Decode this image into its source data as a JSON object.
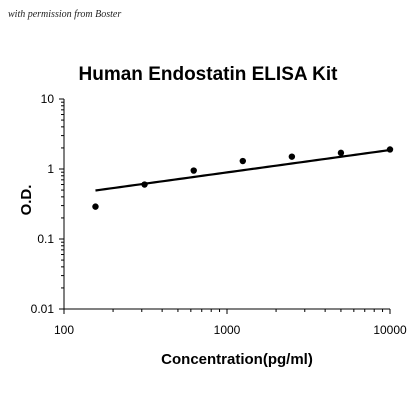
{
  "watermark": "with permission from Boster",
  "chart_data": {
    "type": "scatter",
    "title": "Human Endostatin ELISA Kit",
    "xlabel": "Concentration(pg/ml)",
    "ylabel": "O.D.",
    "x_scale": "log",
    "y_scale": "log",
    "xlim": [
      100,
      10000
    ],
    "ylim": [
      0.01,
      10
    ],
    "x_ticks": [
      "100",
      "1000",
      "10000"
    ],
    "y_ticks": [
      "0.01",
      "0.1",
      "1",
      "10"
    ],
    "grid": false,
    "legend": "none",
    "series": [
      {
        "x": [
          156,
          312,
          625,
          1250,
          2500,
          5000,
          10000
        ],
        "y": [
          0.29,
          0.6,
          0.95,
          1.3,
          1.5,
          1.7,
          1.9
        ]
      }
    ],
    "fit_curve": {
      "type": "power",
      "coef": 0.098,
      "exponent": 0.32,
      "x_range": [
        156,
        10000
      ]
    }
  }
}
